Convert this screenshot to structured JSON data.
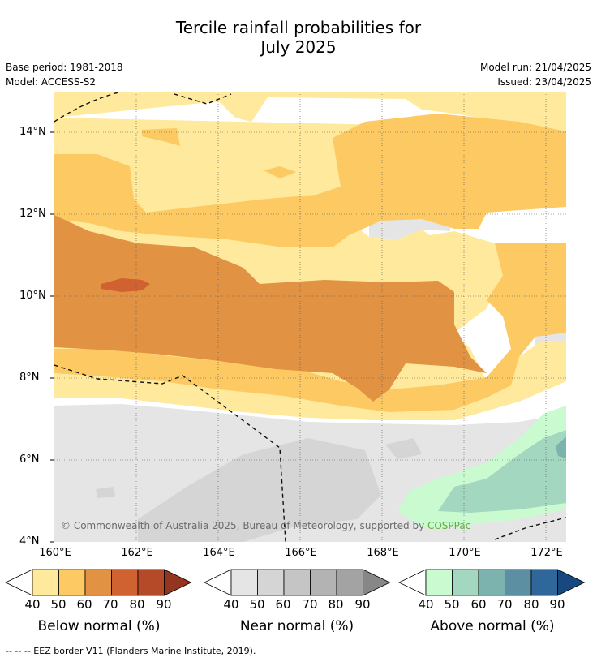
{
  "title_line1": "Tercile rainfall probabilities for",
  "title_line2": "July 2025",
  "base_period": "Base period: 1981-2018",
  "model": "Model: ACCESS-S2",
  "model_run": "Model run: 21/04/2025",
  "issued": "Issued: 23/04/2025",
  "lat_labels": [
    "14°N",
    "12°N",
    "10°N",
    "8°N",
    "6°N",
    "4°N"
  ],
  "lon_labels": [
    "160°E",
    "162°E",
    "164°E",
    "166°E",
    "168°E",
    "170°E",
    "172°E"
  ],
  "copyright": "© Commonwealth of Australia 2025, Bureau of Meteorology, supported by ",
  "copyright_org": "COSPPac",
  "colorbars": [
    {
      "label": "Below normal (%)",
      "colors": [
        "#fee99c",
        "#fdc962",
        "#e19243",
        "#cf6230",
        "#b54a28",
        "#943520"
      ]
    },
    {
      "label": "Near normal (%)",
      "colors": [
        "#e5e5e5",
        "#d5d5d5",
        "#c5c5c5",
        "#b3b3b3",
        "#a3a3a3",
        "#878787"
      ]
    },
    {
      "label": "Above normal (%)",
      "colors": [
        "#c9fad0",
        "#a3d7bf",
        "#7db3ae",
        "#5b8fa1",
        "#30679a",
        "#17497e"
      ]
    }
  ],
  "tick_values": [
    "40",
    "50",
    "60",
    "70",
    "80",
    "90"
  ],
  "footer": "--  --  -- EEZ border V11 (Flanders Marine Institute, 2019)."
}
